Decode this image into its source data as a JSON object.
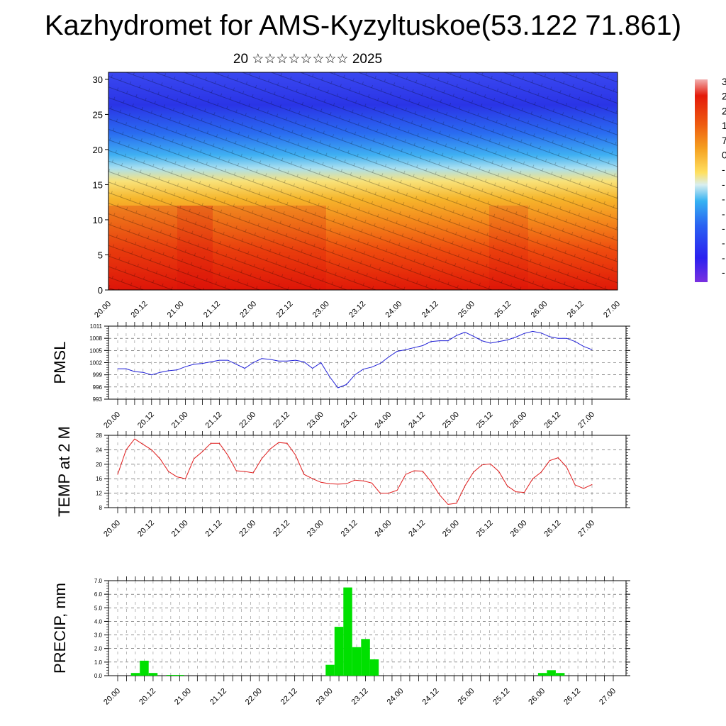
{
  "title": "Kazhydromet for AMS-Kyzyltuskoe(53.122 71.861)",
  "subtitle": "20 ☆☆☆☆☆☆☆☆ 2025",
  "colors": {
    "pmsl_line": "#1f1fd6",
    "temp_line": "#e01b1b",
    "precip_bar": "#00e000",
    "colormap": [
      "#7a1fd6",
      "#2b20f0",
      "#2a62f2",
      "#36b2f2",
      "#bfe4ee",
      "#ffe57a",
      "#f7c132",
      "#f2901c",
      "#ee5a10",
      "#e41a0a",
      "#f0a0a0"
    ]
  },
  "colorbar": {
    "labels": [
      "3",
      "2",
      "2",
      "1",
      "7",
      "0",
      "-",
      "-",
      "-",
      "-",
      "-",
      "-",
      "-",
      "-"
    ]
  },
  "chart_data": [
    {
      "type": "heatmap",
      "name": "vertical cross-section",
      "xlabel": "",
      "ylabel": "",
      "x_ticks": [
        "20.00",
        "20.12",
        "21.00",
        "21.12",
        "22.00",
        "22.12",
        "23.00",
        "23.12",
        "24.00",
        "24.12",
        "25.00",
        "25.12",
        "26.00",
        "26.12",
        "27.00"
      ],
      "y_ticks": [
        0,
        5,
        10,
        15,
        20,
        25,
        30
      ],
      "ylim": [
        0,
        31
      ],
      "description_colors": "red near surface, yellow around level 12-15, blue above 18"
    },
    {
      "type": "line",
      "ylabel": "PMSL",
      "ylim": [
        993,
        1011
      ],
      "y_ticks": [
        993,
        996,
        999,
        1002,
        1005,
        1008,
        1011
      ],
      "x_ticks": [
        "20.00",
        "20.12",
        "21.00",
        "21.12",
        "22.00",
        "22.12",
        "23.00",
        "23.12",
        "24.00",
        "24.12",
        "25.00",
        "25.12",
        "26.00",
        "26.12",
        "27.00"
      ],
      "series": [
        {
          "values": [
            1000.5,
            1000.5,
            999.8,
            999.6,
            999.0,
            999.6,
            1000.0,
            1000.2,
            1001.0,
            1001.6,
            1001.8,
            1002.2,
            1002.6,
            1002.6,
            1001.6,
            1000.6,
            1002.0,
            1003.0,
            1002.8,
            1002.4,
            1002.4,
            1002.6,
            1002.2,
            1000.6,
            1002.0,
            998.6,
            995.8,
            996.6,
            999.0,
            1000.4,
            1000.9,
            1001.8,
            1003.4,
            1004.8,
            1005.2,
            1005.7,
            1006.2,
            1007.2,
            1007.4,
            1007.4,
            1008.7,
            1009.5,
            1008.5,
            1007.4,
            1006.8,
            1007.2,
            1007.6,
            1008.3,
            1009.2,
            1009.7,
            1009.3,
            1008.4,
            1008.0,
            1008.0,
            1007.2,
            1006.0,
            1005.2
          ]
        }
      ]
    },
    {
      "type": "line",
      "ylabel": "TEMP at 2 M",
      "ylim": [
        8,
        28
      ],
      "y_ticks": [
        8,
        12,
        16,
        20,
        24,
        28
      ],
      "x_ticks": [
        "20.00",
        "20.12",
        "21.00",
        "21.12",
        "22.00",
        "22.12",
        "23.00",
        "23.12",
        "24.00",
        "24.12",
        "25.00",
        "25.12",
        "26.00",
        "26.12",
        "27.00"
      ],
      "series": [
        {
          "values": [
            17.2,
            24.0,
            27.0,
            25.5,
            24.0,
            21.5,
            18.0,
            16.5,
            16.0,
            21.5,
            23.5,
            25.8,
            25.8,
            22.5,
            18.2,
            18.0,
            17.6,
            21.5,
            24.2,
            26.0,
            25.8,
            22.5,
            17.2,
            16.0,
            15.0,
            14.6,
            14.5,
            14.6,
            15.6,
            15.4,
            14.8,
            12.0,
            12.0,
            12.8,
            17.2,
            18.2,
            18.1,
            15.2,
            11.5,
            8.9,
            9.2,
            14.0,
            17.8,
            19.8,
            20.1,
            18.0,
            14.0,
            12.4,
            12.2,
            16.0,
            17.8,
            21.0,
            21.8,
            19.2,
            14.3,
            13.3,
            14.4
          ]
        }
      ]
    },
    {
      "type": "bar",
      "ylabel": "PRECIP, mm",
      "ylim": [
        0,
        7
      ],
      "y_ticks": [
        "0.0",
        "1.0",
        "2.0",
        "3.0",
        "4.0",
        "5.0",
        "6.0",
        "7.0"
      ],
      "x_ticks": [
        "20.00",
        "20.12",
        "21.00",
        "21.12",
        "22.00",
        "22.12",
        "23.00",
        "23.12",
        "24.00",
        "24.12",
        "25.00",
        "25.12",
        "26.00",
        "26.12",
        "27.00"
      ],
      "values": [
        0,
        0,
        0.2,
        1.1,
        0.2,
        0,
        0.05,
        0.05,
        0,
        0,
        0,
        0,
        0,
        0,
        0,
        0,
        0,
        0,
        0,
        0,
        0,
        0,
        0,
        0,
        0.8,
        3.6,
        6.5,
        2.1,
        2.7,
        1.2,
        0,
        0,
        0,
        0,
        0,
        0,
        0,
        0,
        0,
        0,
        0,
        0,
        0,
        0,
        0,
        0,
        0,
        0,
        0.2,
        0.4,
        0.2,
        0,
        0,
        0,
        0,
        0,
        0
      ]
    }
  ]
}
